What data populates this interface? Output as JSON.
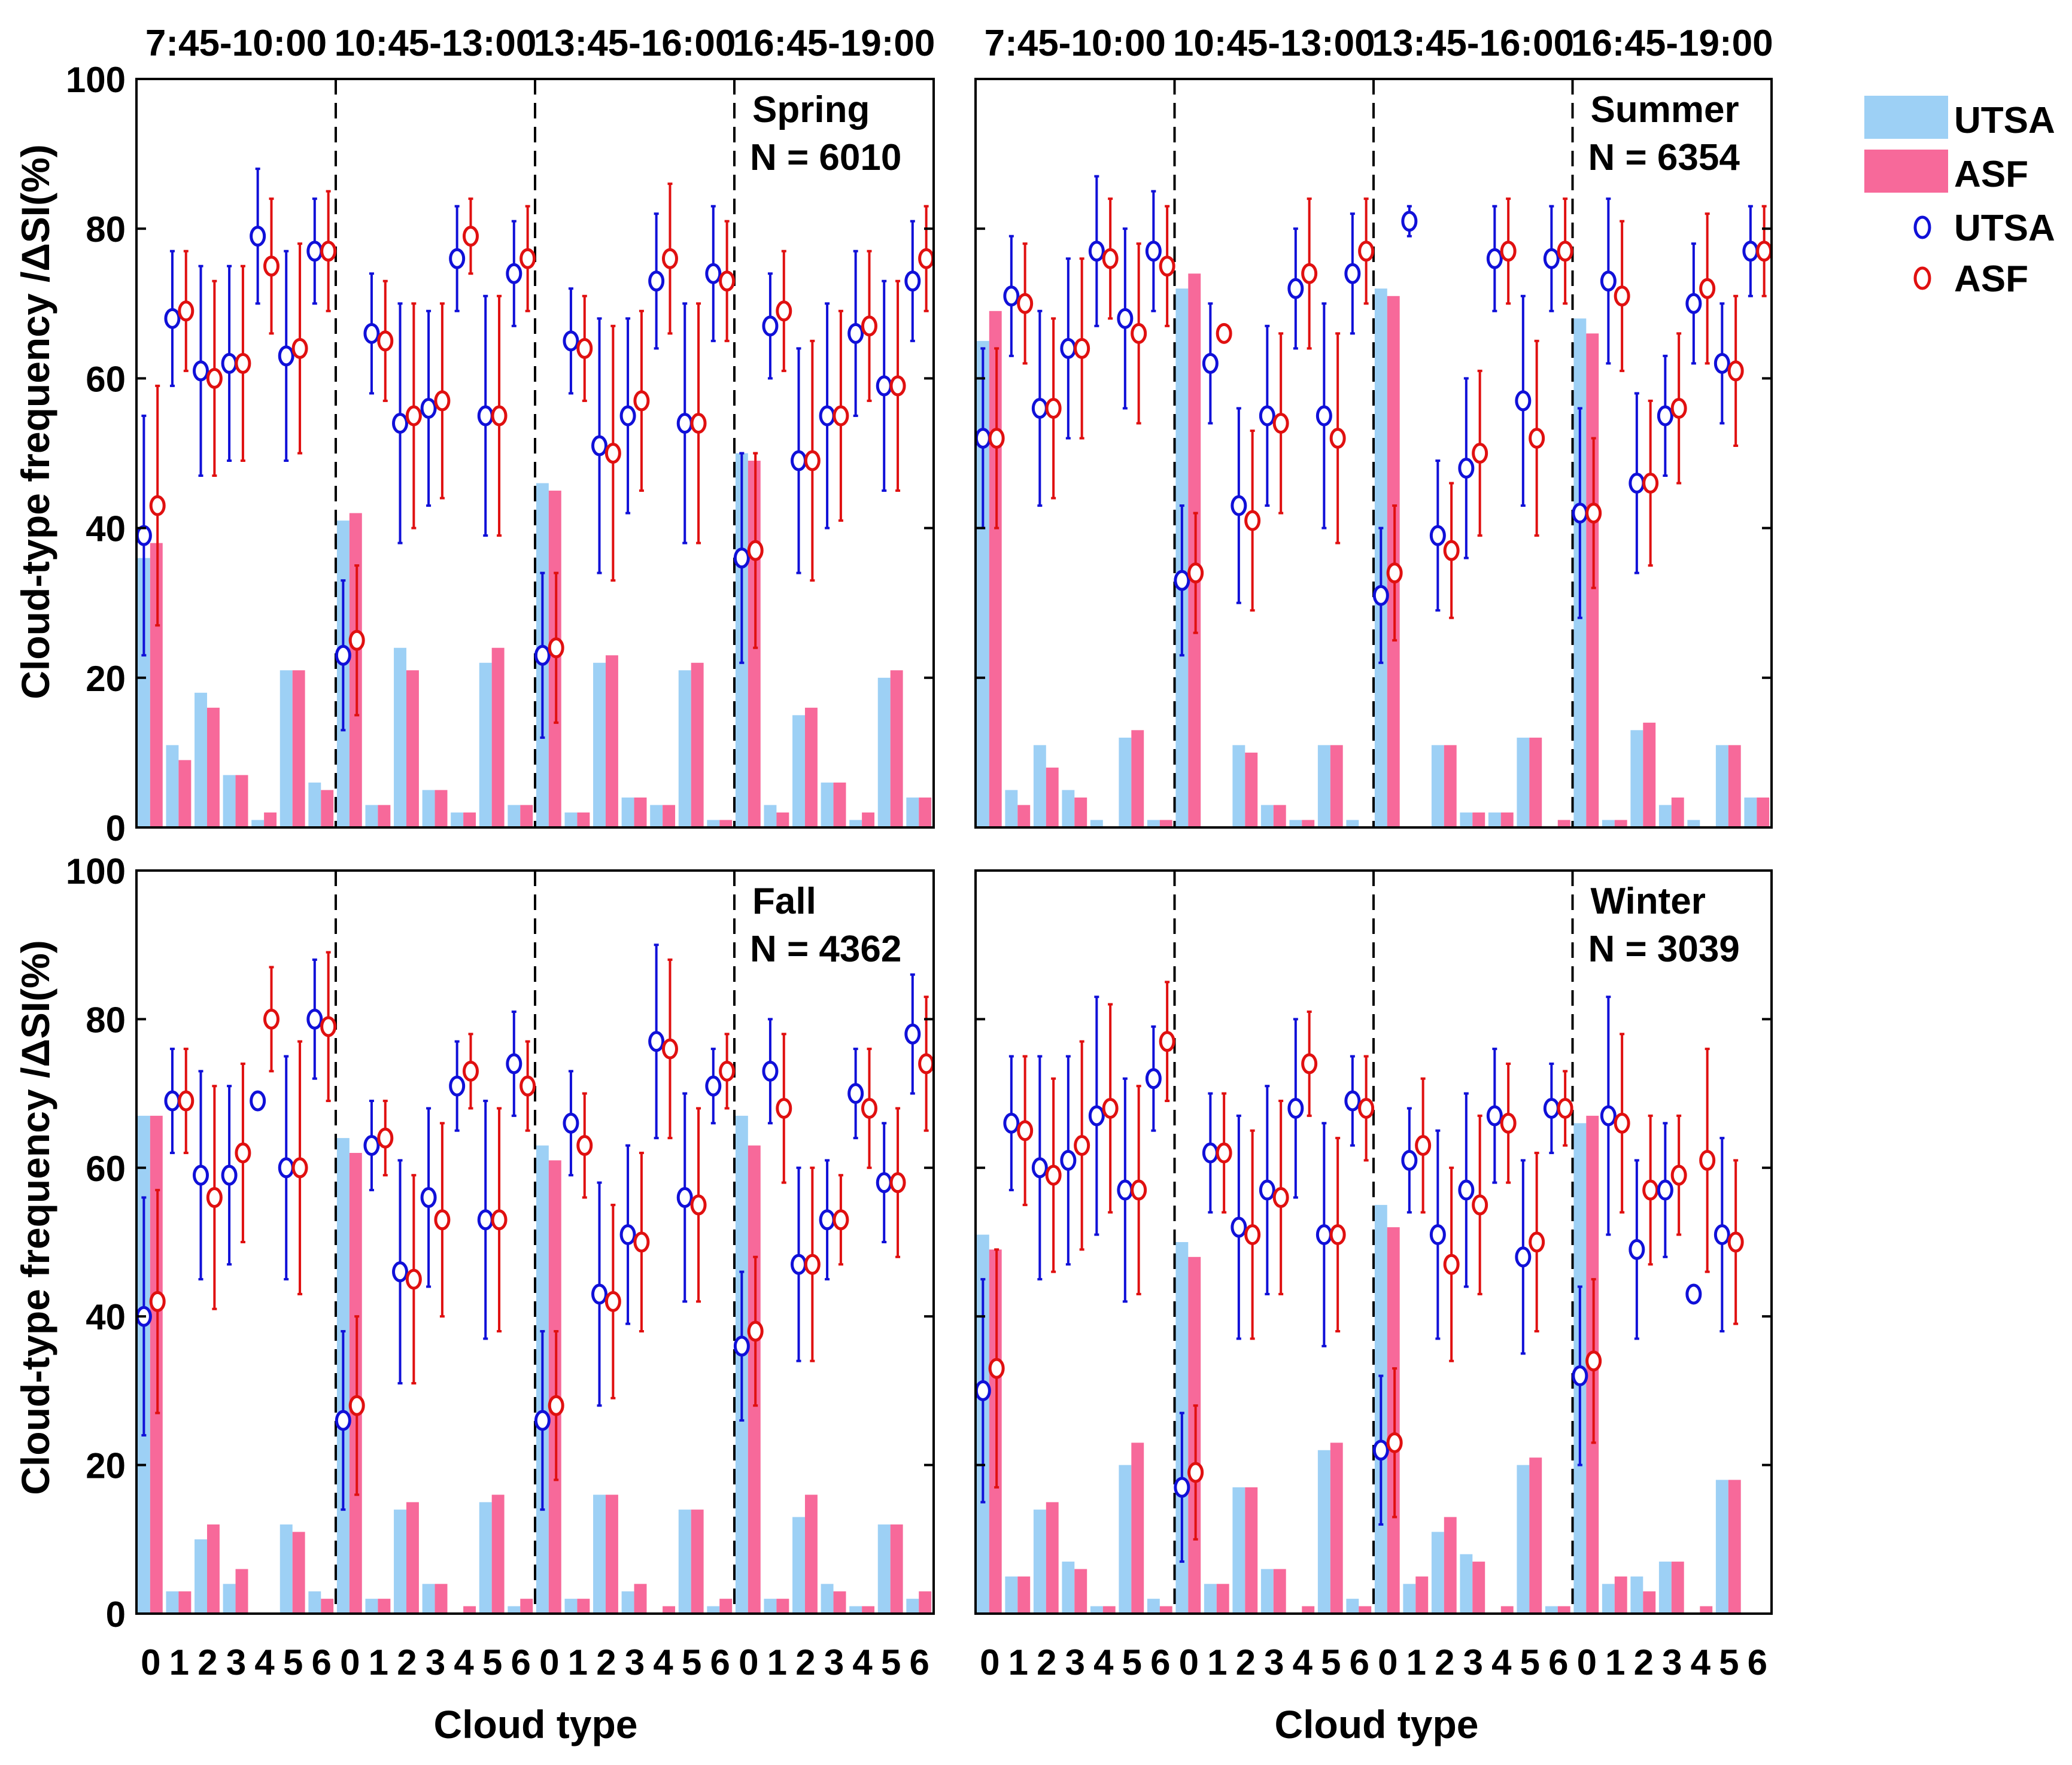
{
  "figure": {
    "ylabel": "Cloud-type frequency /ΔSI(%)",
    "xlabel": "Cloud type"
  },
  "legend": {
    "entries": [
      {
        "label": "UTSA",
        "kind": "bar",
        "color": "#9dd0f5"
      },
      {
        "label": "ASF",
        "kind": "bar",
        "color": "#f7699a"
      },
      {
        "label": "UTSA",
        "kind": "marker",
        "color": "#1010d8"
      },
      {
        "label": "ASF",
        "kind": "marker",
        "color": "#e01010"
      }
    ]
  },
  "colors": {
    "utsa_bar": "#9dd0f5",
    "asf_bar": "#f7699a",
    "utsa_marker": "#1010d8",
    "asf_marker": "#e01010",
    "divider": "#000000"
  },
  "chart_data": {
    "type": "bar",
    "categories": [
      "0",
      "1",
      "2",
      "3",
      "4",
      "5",
      "6"
    ],
    "time_windows": [
      "7:45-10:00",
      "10:45-13:00",
      "13:45-16:00",
      "16:45-19:00"
    ],
    "ylim": [
      0,
      100
    ],
    "yticks": [
      0,
      20,
      40,
      60,
      80,
      100
    ],
    "panels": [
      {
        "season": "Spring",
        "n_label": "N = 6010",
        "show_header": true,
        "show_xaxis": false,
        "show_yticklabels": true,
        "groups": [
          {
            "utsa_freq": [
              36,
              11,
              18,
              7,
              1,
              21,
              6
            ],
            "asf_freq": [
              38,
              9,
              16,
              7,
              2,
              21,
              5
            ],
            "utsa_dsi": [
              39,
              68,
              61,
              62,
              79,
              63,
              77
            ],
            "utsa_err": [
              16,
              9,
              14,
              13,
              9,
              14,
              7
            ],
            "asf_dsi": [
              43,
              69,
              60,
              62,
              75,
              64,
              77
            ],
            "asf_err": [
              16,
              8,
              13,
              13,
              9,
              14,
              8
            ]
          },
          {
            "utsa_freq": [
              41,
              3,
              24,
              5,
              2,
              22,
              3
            ],
            "asf_freq": [
              42,
              3,
              21,
              5,
              2,
              24,
              3
            ],
            "utsa_dsi": [
              23,
              66,
              54,
              56,
              76,
              55,
              74
            ],
            "utsa_err": [
              10,
              8,
              16,
              13,
              7,
              16,
              7
            ],
            "asf_dsi": [
              25,
              65,
              55,
              57,
              79,
              55,
              76
            ],
            "asf_err": [
              10,
              8,
              15,
              13,
              5,
              16,
              7
            ]
          },
          {
            "utsa_freq": [
              46,
              2,
              22,
              4,
              3,
              21,
              1
            ],
            "asf_freq": [
              45,
              2,
              23,
              4,
              3,
              22,
              1
            ],
            "utsa_dsi": [
              23,
              65,
              51,
              55,
              73,
              54,
              74
            ],
            "utsa_err": [
              11,
              7,
              17,
              13,
              9,
              16,
              9
            ],
            "asf_dsi": [
              24,
              64,
              50,
              57,
              76,
              54,
              73
            ],
            "asf_err": [
              10,
              7,
              17,
              12,
              10,
              16,
              8
            ]
          },
          {
            "utsa_freq": [
              50,
              3,
              15,
              6,
              1,
              20,
              4
            ],
            "asf_freq": [
              49,
              2,
              16,
              6,
              2,
              21,
              4
            ],
            "utsa_dsi": [
              36,
              67,
              49,
              55,
              66,
              59,
              73
            ],
            "utsa_err": [
              14,
              7,
              15,
              15,
              11,
              14,
              8
            ],
            "asf_dsi": [
              37,
              69,
              49,
              55,
              67,
              59,
              76
            ],
            "asf_err": [
              13,
              8,
              16,
              14,
              10,
              14,
              7
            ]
          }
        ]
      },
      {
        "season": "Summer",
        "n_label": "N = 6354",
        "show_header": true,
        "show_xaxis": false,
        "show_yticklabels": false,
        "groups": [
          {
            "utsa_freq": [
              65,
              5,
              11,
              5,
              1,
              12,
              1
            ],
            "asf_freq": [
              69,
              3,
              8,
              4,
              0,
              13,
              1
            ],
            "utsa_dsi": [
              52,
              71,
              56,
              64,
              77,
              68,
              77
            ],
            "utsa_err": [
              12,
              8,
              13,
              12,
              10,
              12,
              8
            ],
            "asf_dsi": [
              52,
              70,
              56,
              64,
              76,
              66,
              75
            ],
            "asf_err": [
              12,
              8,
              12,
              12,
              8,
              12,
              8
            ]
          },
          {
            "utsa_freq": [
              72,
              0,
              11,
              3,
              1,
              11,
              1
            ],
            "asf_freq": [
              74,
              0,
              10,
              3,
              1,
              11,
              0
            ],
            "utsa_dsi": [
              33,
              62,
              43,
              55,
              72,
              55,
              74
            ],
            "utsa_err": [
              10,
              8,
              13,
              12,
              8,
              15,
              8
            ],
            "asf_dsi": [
              34,
              66,
              41,
              54,
              74,
              52,
              77
            ],
            "asf_err": [
              8,
              0,
              12,
              12,
              10,
              14,
              7
            ]
          },
          {
            "utsa_freq": [
              72,
              0,
              11,
              2,
              2,
              12,
              0
            ],
            "asf_freq": [
              71,
              0,
              11,
              2,
              2,
              12,
              1
            ],
            "utsa_dsi": [
              31,
              81,
              39,
              48,
              76,
              57,
              76
            ],
            "utsa_err": [
              9,
              2,
              10,
              12,
              7,
              14,
              7
            ],
            "asf_dsi": [
              34,
              0,
              37,
              50,
              77,
              52,
              77
            ],
            "asf_err": [
              9,
              0,
              9,
              11,
              7,
              13,
              7
            ]
          },
          {
            "utsa_freq": [
              68,
              1,
              13,
              3,
              1,
              11,
              4
            ],
            "asf_freq": [
              66,
              1,
              14,
              4,
              0,
              11,
              4
            ],
            "utsa_dsi": [
              42,
              73,
              46,
              55,
              70,
              62,
              77
            ],
            "utsa_err": [
              14,
              11,
              12,
              8,
              8,
              8,
              6
            ],
            "asf_dsi": [
              42,
              71,
              46,
              56,
              72,
              61,
              77
            ],
            "asf_err": [
              10,
              10,
              11,
              10,
              10,
              10,
              6
            ]
          }
        ]
      },
      {
        "season": "Fall",
        "n_label": "N = 4362",
        "show_header": false,
        "show_xaxis": true,
        "show_yticklabels": true,
        "groups": [
          {
            "utsa_freq": [
              67,
              3,
              10,
              4,
              0,
              12,
              3
            ],
            "asf_freq": [
              67,
              3,
              12,
              6,
              0,
              11,
              2
            ],
            "utsa_dsi": [
              40,
              69,
              59,
              59,
              69,
              60,
              80
            ],
            "utsa_err": [
              16,
              7,
              14,
              12,
              0,
              15,
              8
            ],
            "asf_dsi": [
              42,
              69,
              56,
              62,
              80,
              60,
              79
            ],
            "asf_err": [
              15,
              7,
              15,
              12,
              7,
              17,
              10
            ]
          },
          {
            "utsa_freq": [
              64,
              2,
              14,
              4,
              0,
              15,
              1
            ],
            "asf_freq": [
              62,
              2,
              15,
              4,
              1,
              16,
              2
            ],
            "utsa_dsi": [
              26,
              63,
              46,
              56,
              71,
              53,
              74
            ],
            "utsa_err": [
              12,
              6,
              15,
              12,
              6,
              16,
              7
            ],
            "asf_dsi": [
              28,
              64,
              45,
              53,
              73,
              53,
              71
            ],
            "asf_err": [
              12,
              5,
              14,
              13,
              5,
              15,
              6
            ]
          },
          {
            "utsa_freq": [
              63,
              2,
              16,
              3,
              0,
              14,
              1
            ],
            "asf_freq": [
              61,
              2,
              16,
              4,
              1,
              14,
              2
            ],
            "utsa_dsi": [
              26,
              66,
              43,
              51,
              77,
              56,
              71
            ],
            "utsa_err": [
              12,
              7,
              15,
              12,
              13,
              14,
              5
            ],
            "asf_dsi": [
              28,
              63,
              42,
              50,
              76,
              55,
              73
            ],
            "asf_err": [
              10,
              7,
              13,
              12,
              12,
              13,
              5
            ]
          },
          {
            "utsa_freq": [
              67,
              2,
              13,
              4,
              1,
              12,
              2
            ],
            "asf_freq": [
              63,
              2,
              16,
              3,
              1,
              12,
              3
            ],
            "utsa_dsi": [
              36,
              73,
              47,
              53,
              70,
              58,
              78
            ],
            "utsa_err": [
              10,
              7,
              13,
              8,
              6,
              8,
              8
            ],
            "asf_dsi": [
              38,
              68,
              47,
              53,
              68,
              58,
              74
            ],
            "asf_err": [
              10,
              10,
              13,
              6,
              8,
              10,
              9
            ]
          }
        ]
      },
      {
        "season": "Winter",
        "n_label": "N = 3039",
        "show_header": false,
        "show_xaxis": true,
        "show_yticklabels": false,
        "groups": [
          {
            "utsa_freq": [
              51,
              5,
              14,
              7,
              1,
              20,
              2
            ],
            "asf_freq": [
              49,
              5,
              15,
              6,
              1,
              23,
              1
            ],
            "utsa_dsi": [
              30,
              66,
              60,
              61,
              67,
              57,
              72
            ],
            "utsa_err": [
              15,
              9,
              15,
              14,
              16,
              15,
              7
            ],
            "asf_dsi": [
              33,
              65,
              59,
              63,
              68,
              57,
              77
            ],
            "asf_err": [
              16,
              10,
              13,
              14,
              14,
              14,
              8
            ]
          },
          {
            "utsa_freq": [
              50,
              4,
              17,
              6,
              0,
              22,
              2
            ],
            "asf_freq": [
              48,
              4,
              17,
              6,
              1,
              23,
              1
            ],
            "utsa_dsi": [
              17,
              62,
              52,
              57,
              68,
              51,
              69
            ],
            "utsa_err": [
              10,
              8,
              15,
              14,
              12,
              15,
              6
            ],
            "asf_dsi": [
              19,
              62,
              51,
              56,
              74,
              51,
              68
            ],
            "asf_err": [
              9,
              8,
              14,
              13,
              7,
              13,
              7
            ]
          },
          {
            "utsa_freq": [
              55,
              4,
              11,
              8,
              0,
              20,
              1
            ],
            "asf_freq": [
              52,
              5,
              13,
              7,
              1,
              21,
              1
            ],
            "utsa_dsi": [
              22,
              61,
              51,
              57,
              67,
              48,
              68
            ],
            "utsa_err": [
              10,
              7,
              14,
              13,
              9,
              13,
              6
            ],
            "asf_dsi": [
              23,
              63,
              47,
              55,
              66,
              50,
              68
            ],
            "asf_err": [
              10,
              9,
              13,
              12,
              8,
              12,
              5
            ]
          },
          {
            "utsa_freq": [
              66,
              4,
              5,
              7,
              0,
              18,
              0
            ],
            "asf_freq": [
              67,
              5,
              3,
              7,
              1,
              18,
              0
            ],
            "utsa_dsi": [
              32,
              67,
              49,
              57,
              43,
              51,
              0
            ],
            "utsa_err": [
              12,
              16,
              12,
              9,
              0,
              13,
              0
            ],
            "asf_dsi": [
              34,
              66,
              57,
              59,
              61,
              50,
              0
            ],
            "asf_err": [
              11,
              12,
              10,
              8,
              15,
              11,
              0
            ]
          }
        ]
      }
    ]
  }
}
